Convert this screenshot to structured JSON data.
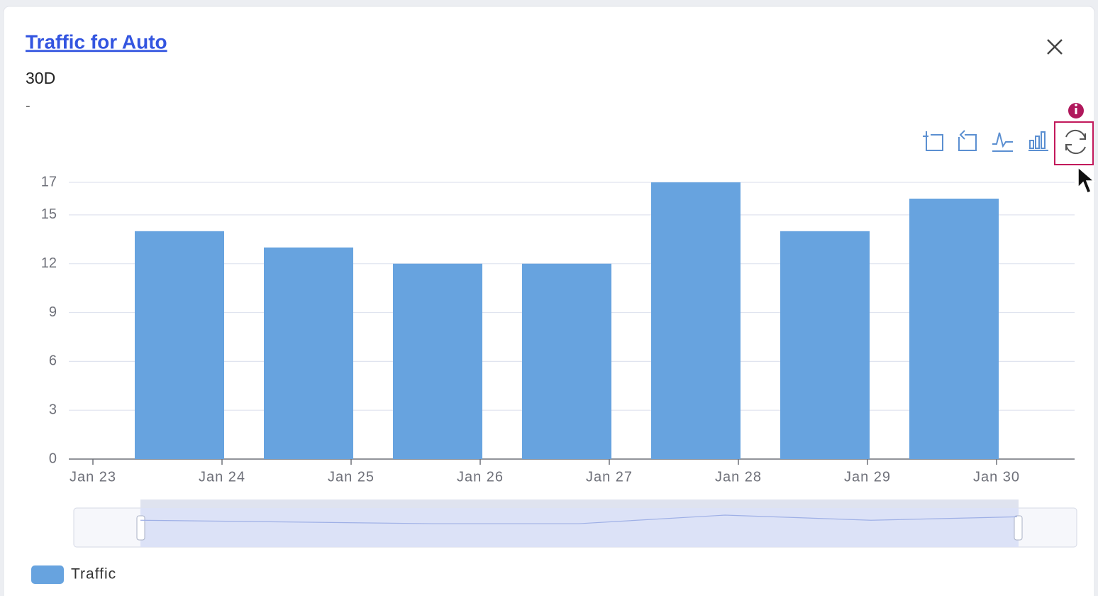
{
  "header": {
    "title": "Traffic for Auto",
    "subtitle": "30D",
    "note": "-"
  },
  "chart_data": {
    "type": "bar",
    "x": [
      "Jan 24",
      "Jan 25",
      "Jan 26",
      "Jan 27",
      "Jan 28",
      "Jan 29",
      "Jan 30"
    ],
    "xticks": [
      "Jan 23",
      "Jan 24",
      "Jan 25",
      "Jan 26",
      "Jan 27",
      "Jan 28",
      "Jan 29",
      "Jan 30"
    ],
    "series": [
      {
        "name": "Traffic",
        "color": "#67a3df",
        "values": [
          14,
          13,
          12,
          12,
          17,
          14,
          16
        ]
      }
    ],
    "ylim": [
      0,
      17
    ],
    "yticks": [
      0,
      3,
      6,
      9,
      12,
      15,
      17
    ],
    "grid": true,
    "legend": "bottom-left"
  }
}
